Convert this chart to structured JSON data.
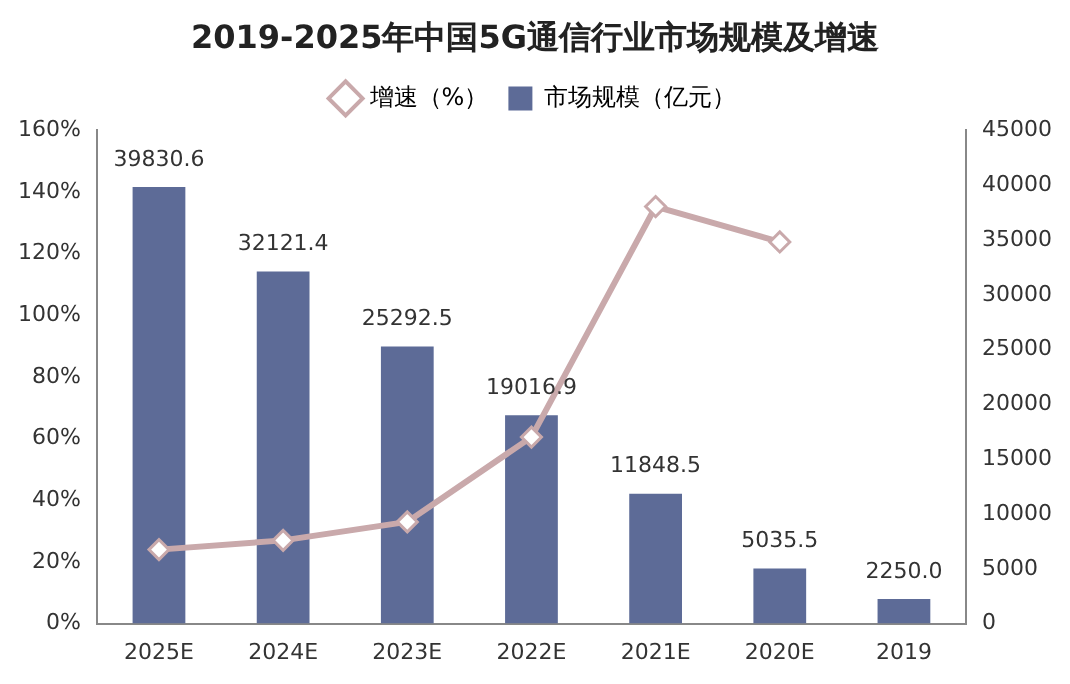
{
  "chart_data": {
    "type": "bar",
    "title": "2019-2025年中国5G通信行业市场规模及增速",
    "categories": [
      "2025E",
      "2024E",
      "2023E",
      "2022E",
      "2021E",
      "2020E",
      "2019"
    ],
    "series": [
      {
        "name": "增速（%）",
        "type": "line",
        "color": "#c9a9ab",
        "axis": "y",
        "marker": "diamond",
        "values": [
          24,
          27,
          33,
          60.5,
          135.3,
          123.8,
          null
        ]
      },
      {
        "name": "市场规模（亿元）",
        "color": "#5d6b97",
        "axis": "y2",
        "values": [
          39830.6,
          32121.4,
          25292.5,
          19016.9,
          11848.5,
          5035.5,
          2250.0
        ],
        "value_labels": [
          "39830.6",
          "32121.4",
          "25292.5",
          "19016.9",
          "11848.5",
          "5035.5",
          "2250.0"
        ]
      }
    ],
    "ylim": [
      0,
      160
    ],
    "yticks": [
      {
        "value": 0,
        "label": "0%"
      },
      {
        "value": 20,
        "label": "20%"
      },
      {
        "value": 40,
        "label": "40%"
      },
      {
        "value": 60,
        "label": "60%"
      },
      {
        "value": 80,
        "label": "80%"
      },
      {
        "value": 100,
        "label": "100%"
      },
      {
        "value": 120,
        "label": "120%"
      },
      {
        "value": 140,
        "label": "140%"
      },
      {
        "value": 160,
        "label": "160%"
      }
    ],
    "y2lim": [
      0,
      45000
    ],
    "y2ticks": [
      0,
      5000,
      10000,
      15000,
      20000,
      25000,
      30000,
      35000,
      40000,
      45000
    ],
    "grid": false,
    "legend": "top"
  }
}
